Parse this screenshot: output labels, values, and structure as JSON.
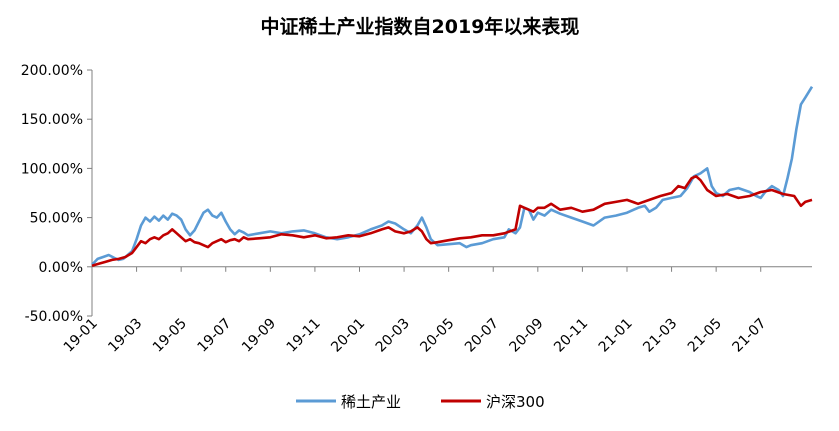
{
  "chart_data": {
    "type": "line",
    "title": "中证稀土产业指数自2019年以来表现",
    "xlabel": "",
    "ylabel": "",
    "ylim": [
      -50,
      200
    ],
    "yticks": [
      -50,
      0,
      50,
      100,
      150,
      200
    ],
    "ytick_labels": [
      "-50.00%",
      "0.00%",
      "50.00%",
      "100.00%",
      "150.00%",
      "200.00%"
    ],
    "xtick_labels": [
      "19-01",
      "19-03",
      "19-05",
      "19-07",
      "19-09",
      "19-11",
      "20-01",
      "20-03",
      "20-05",
      "20-07",
      "20-09",
      "20-11",
      "21-01",
      "21-03",
      "21-05",
      "21-07"
    ],
    "x_month_index_range": [
      0,
      32.3
    ],
    "legend_position": "bottom-center",
    "grid": false,
    "series": [
      {
        "name": "稀土产业",
        "color": "#5B9BD5",
        "points": [
          [
            0,
            2
          ],
          [
            0.25,
            8
          ],
          [
            0.5,
            10
          ],
          [
            0.75,
            12
          ],
          [
            1,
            9
          ],
          [
            1.2,
            7
          ],
          [
            1.4,
            8
          ],
          [
            1.6,
            12
          ],
          [
            1.8,
            16
          ],
          [
            2,
            28
          ],
          [
            2.2,
            42
          ],
          [
            2.4,
            50
          ],
          [
            2.6,
            46
          ],
          [
            2.8,
            51
          ],
          [
            3,
            47
          ],
          [
            3.2,
            52
          ],
          [
            3.4,
            48
          ],
          [
            3.6,
            54
          ],
          [
            3.8,
            52
          ],
          [
            4,
            48
          ],
          [
            4.2,
            38
          ],
          [
            4.4,
            32
          ],
          [
            4.6,
            37
          ],
          [
            4.8,
            46
          ],
          [
            5,
            55
          ],
          [
            5.2,
            58
          ],
          [
            5.4,
            52
          ],
          [
            5.6,
            50
          ],
          [
            5.8,
            55
          ],
          [
            6,
            46
          ],
          [
            6.2,
            38
          ],
          [
            6.4,
            33
          ],
          [
            6.6,
            37
          ],
          [
            6.8,
            35
          ],
          [
            7,
            32
          ],
          [
            7.5,
            34
          ],
          [
            8,
            36
          ],
          [
            8.5,
            34
          ],
          [
            9,
            36
          ],
          [
            9.5,
            37
          ],
          [
            10,
            34
          ],
          [
            10.5,
            30
          ],
          [
            11,
            28
          ],
          [
            11.5,
            30
          ],
          [
            12,
            33
          ],
          [
            12.5,
            38
          ],
          [
            13,
            42
          ],
          [
            13.3,
            46
          ],
          [
            13.6,
            44
          ],
          [
            14,
            38
          ],
          [
            14.3,
            34
          ],
          [
            14.6,
            42
          ],
          [
            14.8,
            50
          ],
          [
            15,
            40
          ],
          [
            15.2,
            28
          ],
          [
            15.5,
            22
          ],
          [
            16,
            23
          ],
          [
            16.5,
            24
          ],
          [
            16.8,
            20
          ],
          [
            17,
            22
          ],
          [
            17.5,
            24
          ],
          [
            18,
            28
          ],
          [
            18.5,
            30
          ],
          [
            18.7,
            38
          ],
          [
            19,
            34
          ],
          [
            19.2,
            40
          ],
          [
            19.4,
            60
          ],
          [
            19.6,
            58
          ],
          [
            19.8,
            48
          ],
          [
            20,
            55
          ],
          [
            20.3,
            52
          ],
          [
            20.6,
            58
          ],
          [
            21,
            54
          ],
          [
            21.5,
            50
          ],
          [
            22,
            46
          ],
          [
            22.5,
            42
          ],
          [
            23,
            50
          ],
          [
            23.5,
            52
          ],
          [
            24,
            55
          ],
          [
            24.5,
            60
          ],
          [
            24.8,
            62
          ],
          [
            25,
            56
          ],
          [
            25.3,
            60
          ],
          [
            25.6,
            68
          ],
          [
            26,
            70
          ],
          [
            26.4,
            72
          ],
          [
            26.7,
            80
          ],
          [
            27,
            92
          ],
          [
            27.3,
            95
          ],
          [
            27.6,
            100
          ],
          [
            27.8,
            82
          ],
          [
            28,
            75
          ],
          [
            28.3,
            72
          ],
          [
            28.6,
            78
          ],
          [
            29,
            80
          ],
          [
            29.5,
            76
          ],
          [
            29.8,
            72
          ],
          [
            30,
            70
          ],
          [
            30.2,
            76
          ],
          [
            30.5,
            82
          ],
          [
            30.8,
            78
          ],
          [
            31,
            72
          ],
          [
            31.2,
            90
          ],
          [
            31.4,
            110
          ],
          [
            31.6,
            140
          ],
          [
            31.8,
            165
          ],
          [
            32,
            172
          ],
          [
            32.3,
            183
          ]
        ]
      },
      {
        "name": "沪深300",
        "color": "#C00000",
        "points": [
          [
            0,
            1
          ],
          [
            0.3,
            3
          ],
          [
            0.6,
            5
          ],
          [
            0.9,
            7
          ],
          [
            1.2,
            8
          ],
          [
            1.5,
            10
          ],
          [
            1.8,
            14
          ],
          [
            2,
            20
          ],
          [
            2.2,
            26
          ],
          [
            2.4,
            24
          ],
          [
            2.6,
            28
          ],
          [
            2.8,
            30
          ],
          [
            3,
            28
          ],
          [
            3.2,
            32
          ],
          [
            3.4,
            34
          ],
          [
            3.6,
            38
          ],
          [
            3.8,
            34
          ],
          [
            4,
            30
          ],
          [
            4.2,
            26
          ],
          [
            4.4,
            28
          ],
          [
            4.6,
            25
          ],
          [
            4.8,
            24
          ],
          [
            5,
            22
          ],
          [
            5.2,
            20
          ],
          [
            5.4,
            24
          ],
          [
            5.6,
            26
          ],
          [
            5.8,
            28
          ],
          [
            6,
            25
          ],
          [
            6.2,
            27
          ],
          [
            6.4,
            28
          ],
          [
            6.6,
            26
          ],
          [
            6.8,
            30
          ],
          [
            7,
            28
          ],
          [
            7.5,
            29
          ],
          [
            8,
            30
          ],
          [
            8.5,
            33
          ],
          [
            9,
            32
          ],
          [
            9.5,
            30
          ],
          [
            10,
            32
          ],
          [
            10.5,
            29
          ],
          [
            11,
            30
          ],
          [
            11.5,
            32
          ],
          [
            12,
            31
          ],
          [
            12.5,
            34
          ],
          [
            13,
            38
          ],
          [
            13.3,
            40
          ],
          [
            13.6,
            36
          ],
          [
            14,
            34
          ],
          [
            14.3,
            36
          ],
          [
            14.6,
            40
          ],
          [
            14.8,
            36
          ],
          [
            15,
            28
          ],
          [
            15.2,
            24
          ],
          [
            15.5,
            25
          ],
          [
            16,
            27
          ],
          [
            16.5,
            29
          ],
          [
            17,
            30
          ],
          [
            17.5,
            32
          ],
          [
            18,
            32
          ],
          [
            18.5,
            34
          ],
          [
            19,
            38
          ],
          [
            19.2,
            62
          ],
          [
            19.4,
            60
          ],
          [
            19.8,
            56
          ],
          [
            20,
            60
          ],
          [
            20.3,
            60
          ],
          [
            20.6,
            64
          ],
          [
            21,
            58
          ],
          [
            21.5,
            60
          ],
          [
            22,
            56
          ],
          [
            22.5,
            58
          ],
          [
            23,
            64
          ],
          [
            23.5,
            66
          ],
          [
            24,
            68
          ],
          [
            24.5,
            64
          ],
          [
            25,
            68
          ],
          [
            25.5,
            72
          ],
          [
            26,
            75
          ],
          [
            26.3,
            82
          ],
          [
            26.6,
            80
          ],
          [
            26.9,
            90
          ],
          [
            27.1,
            92
          ],
          [
            27.3,
            88
          ],
          [
            27.6,
            78
          ],
          [
            28,
            72
          ],
          [
            28.5,
            74
          ],
          [
            29,
            70
          ],
          [
            29.5,
            72
          ],
          [
            30,
            76
          ],
          [
            30.5,
            78
          ],
          [
            31,
            74
          ],
          [
            31.5,
            72
          ],
          [
            31.8,
            62
          ],
          [
            32,
            66
          ],
          [
            32.3,
            68
          ]
        ]
      }
    ]
  }
}
